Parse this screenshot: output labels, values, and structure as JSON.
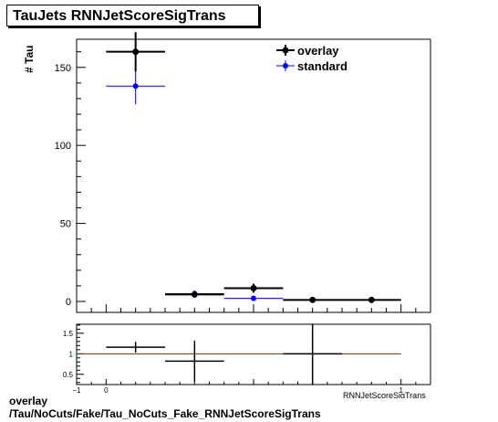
{
  "title": "TauJets RNNJetScoreSigTrans",
  "ylabel": "# Tau",
  "xlabel": "RNNJetScoreSigTrans",
  "footer": {
    "line1": "overlay",
    "line2": "/Tau/NoCuts/Fake/Tau_NoCuts_Fake_RNNJetScoreSigTrans"
  },
  "colors": {
    "overlay": "#000000",
    "standard": "#0000ff",
    "ref_line": "#cc0000"
  },
  "chart_data": [
    {
      "type": "scatter",
      "title": "TauJets RNNJetScoreSigTrans",
      "ylabel": "# Tau",
      "xlim": [
        -0.1,
        1.1
      ],
      "ylim": [
        -7,
        168
      ],
      "y_ticks": [
        0,
        50,
        100,
        150
      ],
      "legend": {
        "placement": "top-right",
        "entries": [
          "overlay",
          "standard"
        ]
      },
      "series": [
        {
          "name": "overlay",
          "points": [
            {
              "x": 0.1,
              "xerr": 0.1,
              "y": 160,
              "yerr": 12.6
            },
            {
              "x": 0.3,
              "xerr": 0.1,
              "y": 4.5,
              "yerr": 2.1
            },
            {
              "x": 0.5,
              "xerr": 0.1,
              "y": 8.5,
              "yerr": 2.9
            },
            {
              "x": 0.7,
              "xerr": 0.1,
              "y": 1,
              "yerr": 1
            },
            {
              "x": 0.9,
              "xerr": 0.1,
              "y": 1,
              "yerr": 1
            }
          ]
        },
        {
          "name": "standard",
          "points": [
            {
              "x": 0.1,
              "xerr": 0.1,
              "y": 138,
              "yerr": 11.7
            },
            {
              "x": 0.3,
              "xerr": 0.1,
              "y": 5,
              "yerr": 2.2
            },
            {
              "x": 0.5,
              "xerr": 0.1,
              "y": 2,
              "yerr": 1.4
            },
            {
              "x": 0.7,
              "xerr": 0.1,
              "y": 1,
              "yerr": 1
            },
            {
              "x": 0.9,
              "xerr": 0.1,
              "y": 1,
              "yerr": 1
            }
          ]
        }
      ]
    },
    {
      "type": "scatter",
      "title": "",
      "xlim": [
        -0.1,
        1.1
      ],
      "ylim": [
        0.25,
        1.72
      ],
      "y_ticks": [
        0.5,
        1,
        1.5
      ],
      "y_tick_labels": [
        "0.5",
        "1",
        "1.5"
      ],
      "x_ticks": [
        0,
        1
      ],
      "x_tick_labels": [
        "0",
        "1"
      ],
      "x_edge_label": "−1",
      "reference_line": 1,
      "series": [
        {
          "name": "ratio",
          "points": [
            {
              "x": 0.1,
              "xerr": 0.1,
              "y": 1.16,
              "yerr": 0.13
            },
            {
              "x": 0.3,
              "xerr": 0.1,
              "y": 0.82,
              "yerr": 0.5
            },
            {
              "x": 0.7,
              "xerr": 0.1,
              "y": 1.0,
              "yerr": 1.0
            }
          ]
        }
      ]
    }
  ]
}
